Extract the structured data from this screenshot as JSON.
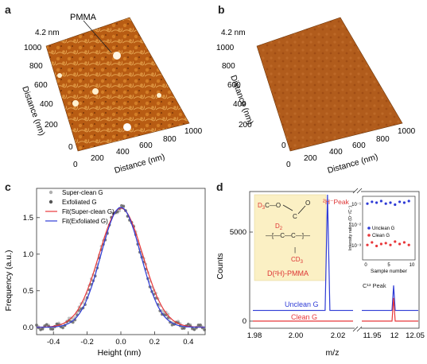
{
  "panels": {
    "a": {
      "label": "a",
      "z_label": "4.2 nm",
      "annotation": "PMMA",
      "axis_label_left": "Distance (nm)",
      "axis_label_bottom": "Distance (nm)",
      "ticks_left": [
        "0",
        "200",
        "400",
        "600",
        "800",
        "1000"
      ],
      "ticks_bottom": [
        "0",
        "200",
        "400",
        "600",
        "800",
        "1000"
      ]
    },
    "b": {
      "label": "b",
      "z_label": "4.2 nm",
      "axis_label_left": "Distance (nm)",
      "axis_label_bottom": "Distance (nm)",
      "ticks_left": [
        "0",
        "200",
        "400",
        "600",
        "800",
        "1000"
      ],
      "ticks_bottom": [
        "0",
        "200",
        "400",
        "600",
        "800",
        "1000"
      ]
    },
    "c": {
      "label": "c"
    },
    "d": {
      "label": "d",
      "molecule_label": "D(²H)-PMMA",
      "peak_label_main": "²H⁻Peak",
      "peak_label_c": "C¹³ Peak",
      "trace_unclean": "Unclean G",
      "trace_clean": "Clean G",
      "inset_ylabel": "Intensity ration (D⁻/C⁻)",
      "inset_xlabel": "Sample number",
      "inset_legend": [
        "Unclean G",
        "Clean G"
      ],
      "inset_yticks": [
        "10⁻¹",
        "10⁻²",
        "10⁻³"
      ],
      "inset_xticks": [
        "0",
        "5",
        "10"
      ]
    }
  },
  "chart_data": [
    {
      "type": "scatter",
      "panel": "c",
      "xlabel": "Height (nm)",
      "ylabel": "Frequency (a.u.)",
      "xlim": [
        -0.5,
        0.5
      ],
      "ylim": [
        -0.1,
        1.9
      ],
      "xticks": [
        "-0.4",
        "-0.2",
        "0.0",
        "0.2",
        "0.4"
      ],
      "yticks": [
        "0.0",
        "0.5",
        "1.0",
        "1.5"
      ],
      "legend": [
        "Super-clean G",
        "Exfoliated G",
        "Fit(Super-clean G)",
        "Fit(Exfoliated G)"
      ],
      "series": [
        {
          "name": "Super-clean G",
          "kind": "points",
          "color": "#b0b0b0",
          "center": 0.0,
          "amplitude": 1.62,
          "sigma": 0.128
        },
        {
          "name": "Exfoliated G",
          "kind": "points",
          "color": "#555555",
          "center": 0.0,
          "amplitude": 1.64,
          "sigma": 0.12
        },
        {
          "name": "Fit(Super-clean G)",
          "kind": "line",
          "color": "#e8373a",
          "center": 0.0,
          "amplitude": 1.63,
          "sigma": 0.13
        },
        {
          "name": "Fit(Exfoliated G)",
          "kind": "line",
          "color": "#2e3bd6",
          "center": 0.0,
          "amplitude": 1.64,
          "sigma": 0.118
        }
      ]
    },
    {
      "type": "line",
      "panel": "d",
      "xlabel": "m/z",
      "ylabel": "Counts",
      "yticks": [
        "0",
        "5000"
      ],
      "xticks_left": [
        "1.98",
        "2.00",
        "2.02"
      ],
      "xticks_right": [
        "11.95",
        "12",
        "12.05"
      ],
      "series": [
        {
          "name": "Unclean G",
          "color": "#2e3bd6",
          "baseline": 600,
          "peak_2H": {
            "x": 2.015,
            "height": 6500
          },
          "peak_13C": {
            "x": 12.0,
            "height": 1400
          }
        },
        {
          "name": "Clean G",
          "color": "#e8373a",
          "baseline": 0,
          "peak_2H": {
            "x": 2.015,
            "height": 0
          },
          "peak_13C": {
            "x": 12.0,
            "height": 1300
          }
        }
      ],
      "inset": {
        "type": "scatter",
        "series": [
          {
            "name": "Unclean G",
            "color": "#2e3bd6",
            "values": [
              0.09,
              0.11,
              0.1,
              0.12,
              0.09,
              0.1,
              0.08,
              0.11,
              0.1,
              0.12
            ]
          },
          {
            "name": "Clean G",
            "color": "#e8373a",
            "values": [
              0.0009,
              0.0012,
              0.0008,
              0.001,
              0.0011,
              0.0009,
              0.0013,
              0.001,
              0.0012,
              0.0009
            ]
          }
        ]
      }
    }
  ]
}
